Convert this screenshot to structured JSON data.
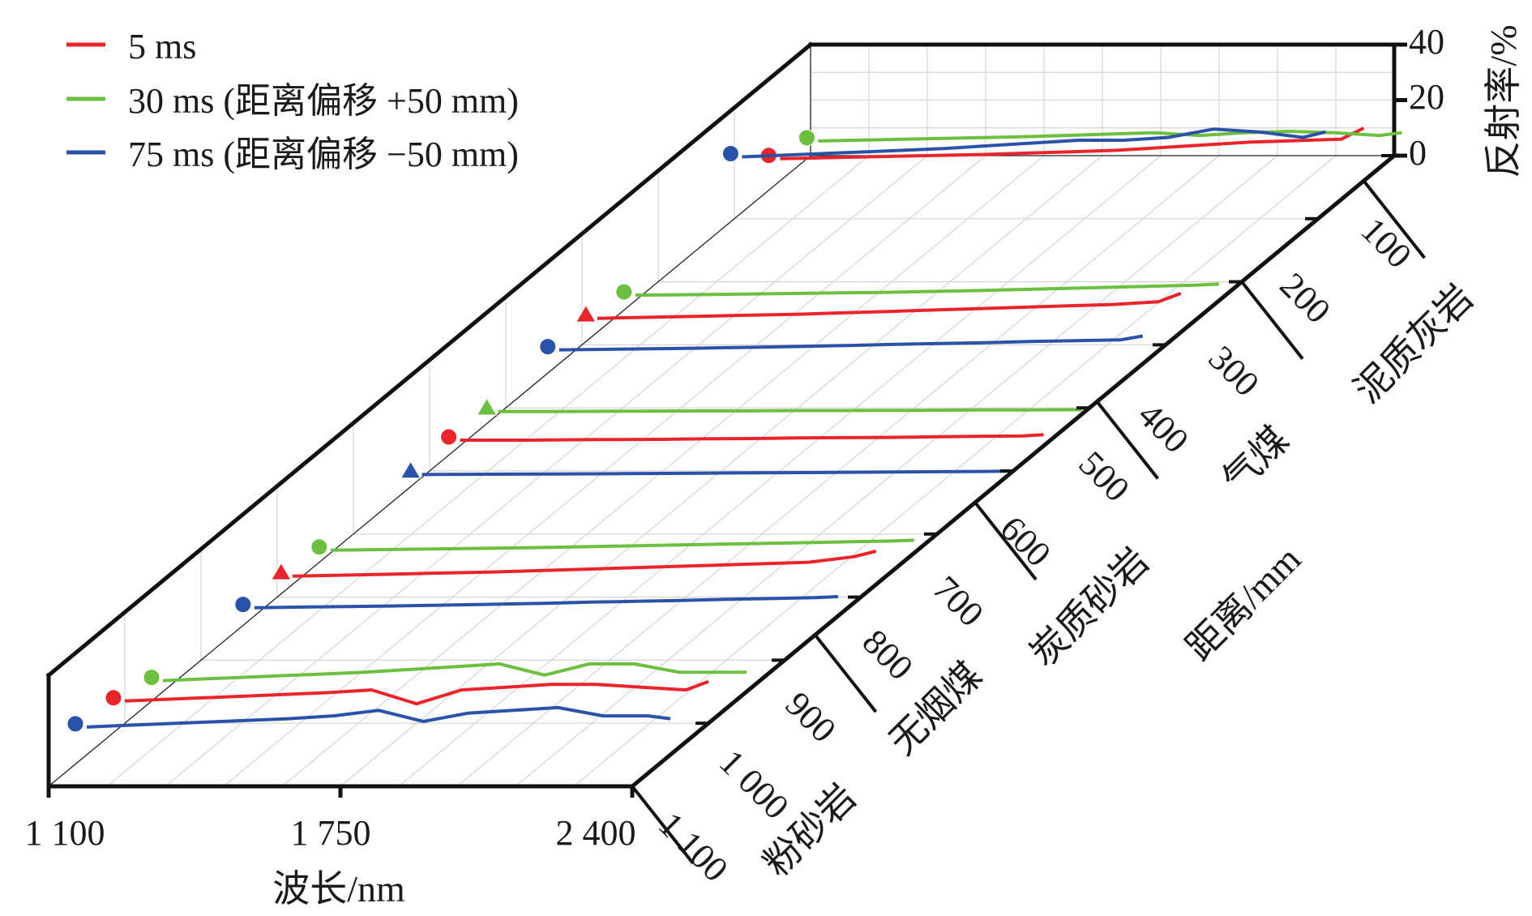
{
  "chart_data": {
    "type": "line",
    "projection": "3d-oblique",
    "xlabel": "波长/nm",
    "ylabel": "距离/mm",
    "zlabel": "反射率/%",
    "x_ticks": [
      "1 100",
      "1 750",
      "2 400"
    ],
    "xlim": [
      1100,
      2400
    ],
    "y_ticks": [
      "100",
      "200",
      "300",
      "400",
      "500",
      "600",
      "700",
      "800",
      "900",
      "1 000",
      "1 100"
    ],
    "ylim": [
      100,
      1100
    ],
    "z_ticks": [
      "0",
      "20",
      "40"
    ],
    "zlim": [
      0,
      40
    ],
    "grid": true,
    "legend": {
      "placement": "top-left",
      "entries": [
        {
          "label": "5 ms",
          "color": "#e8252b"
        },
        {
          "label": "30 ms (距离偏移 +50 mm)",
          "color": "#6cbf3f"
        },
        {
          "label": "75 ms (距离偏移 −50 mm)",
          "color": "#2a52a8"
        }
      ]
    },
    "categories": [
      "粉砂岩",
      "无烟煤",
      "炭质砂岩",
      "气煤",
      "泥质灰岩"
    ],
    "x": [
      1100,
      1250,
      1400,
      1550,
      1650,
      1750,
      1850,
      1950,
      2050,
      2150,
      2250,
      2350,
      2400
    ],
    "groups": [
      {
        "name": "泥质灰岩",
        "distance": 140,
        "series": [
          {
            "exposure": "5 ms",
            "color": "#e8252b",
            "marker": "circle",
            "offset_mm": 0,
            "values": [
              8,
              8.5,
              9,
              9.5,
              10,
              10.5,
              11,
              12,
              13,
              14,
              14.5,
              15,
              19
            ]
          },
          {
            "exposure": "30 ms",
            "color": "#6cbf3f",
            "marker": "circle",
            "offset_mm": 50,
            "values": [
              3,
              3.5,
              4,
              4.5,
              5,
              5.5,
              6,
              5,
              6,
              6.5,
              6,
              5,
              6
            ]
          },
          {
            "exposure": "75 ms",
            "color": "#2a52a8",
            "marker": "circle",
            "offset_mm": -50,
            "values": [
              20,
              21,
              22,
              23,
              24,
              25,
              26,
              26,
              27,
              30,
              29,
              27,
              29
            ]
          }
        ]
      },
      {
        "name": "气煤",
        "distance": 380,
        "series": [
          {
            "exposure": "5 ms",
            "color": "#e8252b",
            "marker": "triangle",
            "offset_mm": 0,
            "values": [
              5,
              5.5,
              6,
              6.5,
              7,
              7.5,
              8,
              8.5,
              9,
              9.5,
              10,
              11,
              14
            ]
          },
          {
            "exposure": "30 ms",
            "color": "#6cbf3f",
            "marker": "circle",
            "offset_mm": 50,
            "values": [
              2,
              2.2,
              2.5,
              2.8,
              3,
              3.3,
              3.6,
              4,
              4.4,
              4.8,
              5.2,
              5.6,
              6
            ]
          },
          {
            "exposure": "75 ms",
            "color": "#2a52a8",
            "marker": "circle",
            "offset_mm": -50,
            "values": [
              5,
              5.3,
              5.6,
              6,
              6.3,
              6.6,
              7,
              7.3,
              7.6,
              8,
              8.3,
              8.6,
              10
            ]
          }
        ]
      },
      {
        "name": "炭质砂岩",
        "distance": 560,
        "series": [
          {
            "exposure": "5 ms",
            "color": "#e8252b",
            "marker": "circle",
            "offset_mm": 0,
            "values": [
              2,
              2,
              2.2,
              2.3,
              2.5,
              2.6,
              2.8,
              2.9,
              3,
              3.2,
              3.4,
              3.5,
              4
            ]
          },
          {
            "exposure": "30 ms",
            "color": "#6cbf3f",
            "marker": "triangle",
            "offset_mm": 50,
            "values": [
              1,
              1,
              1.1,
              1.2,
              1.2,
              1.3,
              1.3,
              1.4,
              1.4,
              1.5,
              1.5,
              1.6,
              1.6
            ]
          },
          {
            "exposure": "75 ms",
            "color": "#2a52a8",
            "marker": "triangle",
            "offset_mm": -50,
            "values": [
              1,
              1.1,
              1.2,
              1.3,
              1.4,
              1.5,
              1.6,
              1.7,
              1.8,
              1.9,
              2,
              2.1,
              2.2
            ]
          }
        ]
      },
      {
        "name": "无烟煤",
        "distance": 780,
        "series": [
          {
            "exposure": "5 ms",
            "color": "#e8252b",
            "marker": "triangle",
            "offset_mm": 0,
            "values": [
              3,
              3.5,
              4,
              4.5,
              5,
              5.5,
              6,
              6.5,
              7,
              7.5,
              8,
              10,
              12
            ]
          },
          {
            "exposure": "30 ms",
            "color": "#6cbf3f",
            "marker": "circle",
            "offset_mm": 50,
            "values": [
              1,
              1.3,
              1.6,
              1.9,
              2.2,
              2.5,
              2.8,
              3.1,
              3.4,
              3.7,
              4,
              4.3,
              4.6
            ]
          },
          {
            "exposure": "75 ms",
            "color": "#2a52a8",
            "marker": "circle",
            "offset_mm": -50,
            "values": [
              3,
              3.3,
              3.6,
              4,
              4.3,
              4.6,
              5,
              5.3,
              5.6,
              6,
              6.3,
              6.6,
              7
            ]
          }
        ]
      },
      {
        "name": "粉砂岩",
        "distance": 1000,
        "series": [
          {
            "exposure": "5 ms",
            "color": "#e8252b",
            "marker": "circle",
            "offset_mm": 0,
            "values": [
              8,
              9,
              10,
              11,
              12,
              7,
              12,
              13,
              14,
              14,
              13,
              12,
              15
            ]
          },
          {
            "exposure": "30 ms",
            "color": "#6cbf3f",
            "marker": "circle",
            "offset_mm": 50,
            "values": [
              4,
              5,
              6,
              7,
              8,
              9,
              10,
              6,
              10,
              10,
              7,
              7,
              7
            ]
          },
          {
            "exposure": "75 ms",
            "color": "#2a52a8",
            "marker": "circle",
            "offset_mm": -50,
            "values": [
              10,
              11,
              12,
              13,
              14,
              16,
              12,
              15,
              16,
              17,
              14,
              14,
              13
            ]
          }
        ]
      }
    ]
  }
}
